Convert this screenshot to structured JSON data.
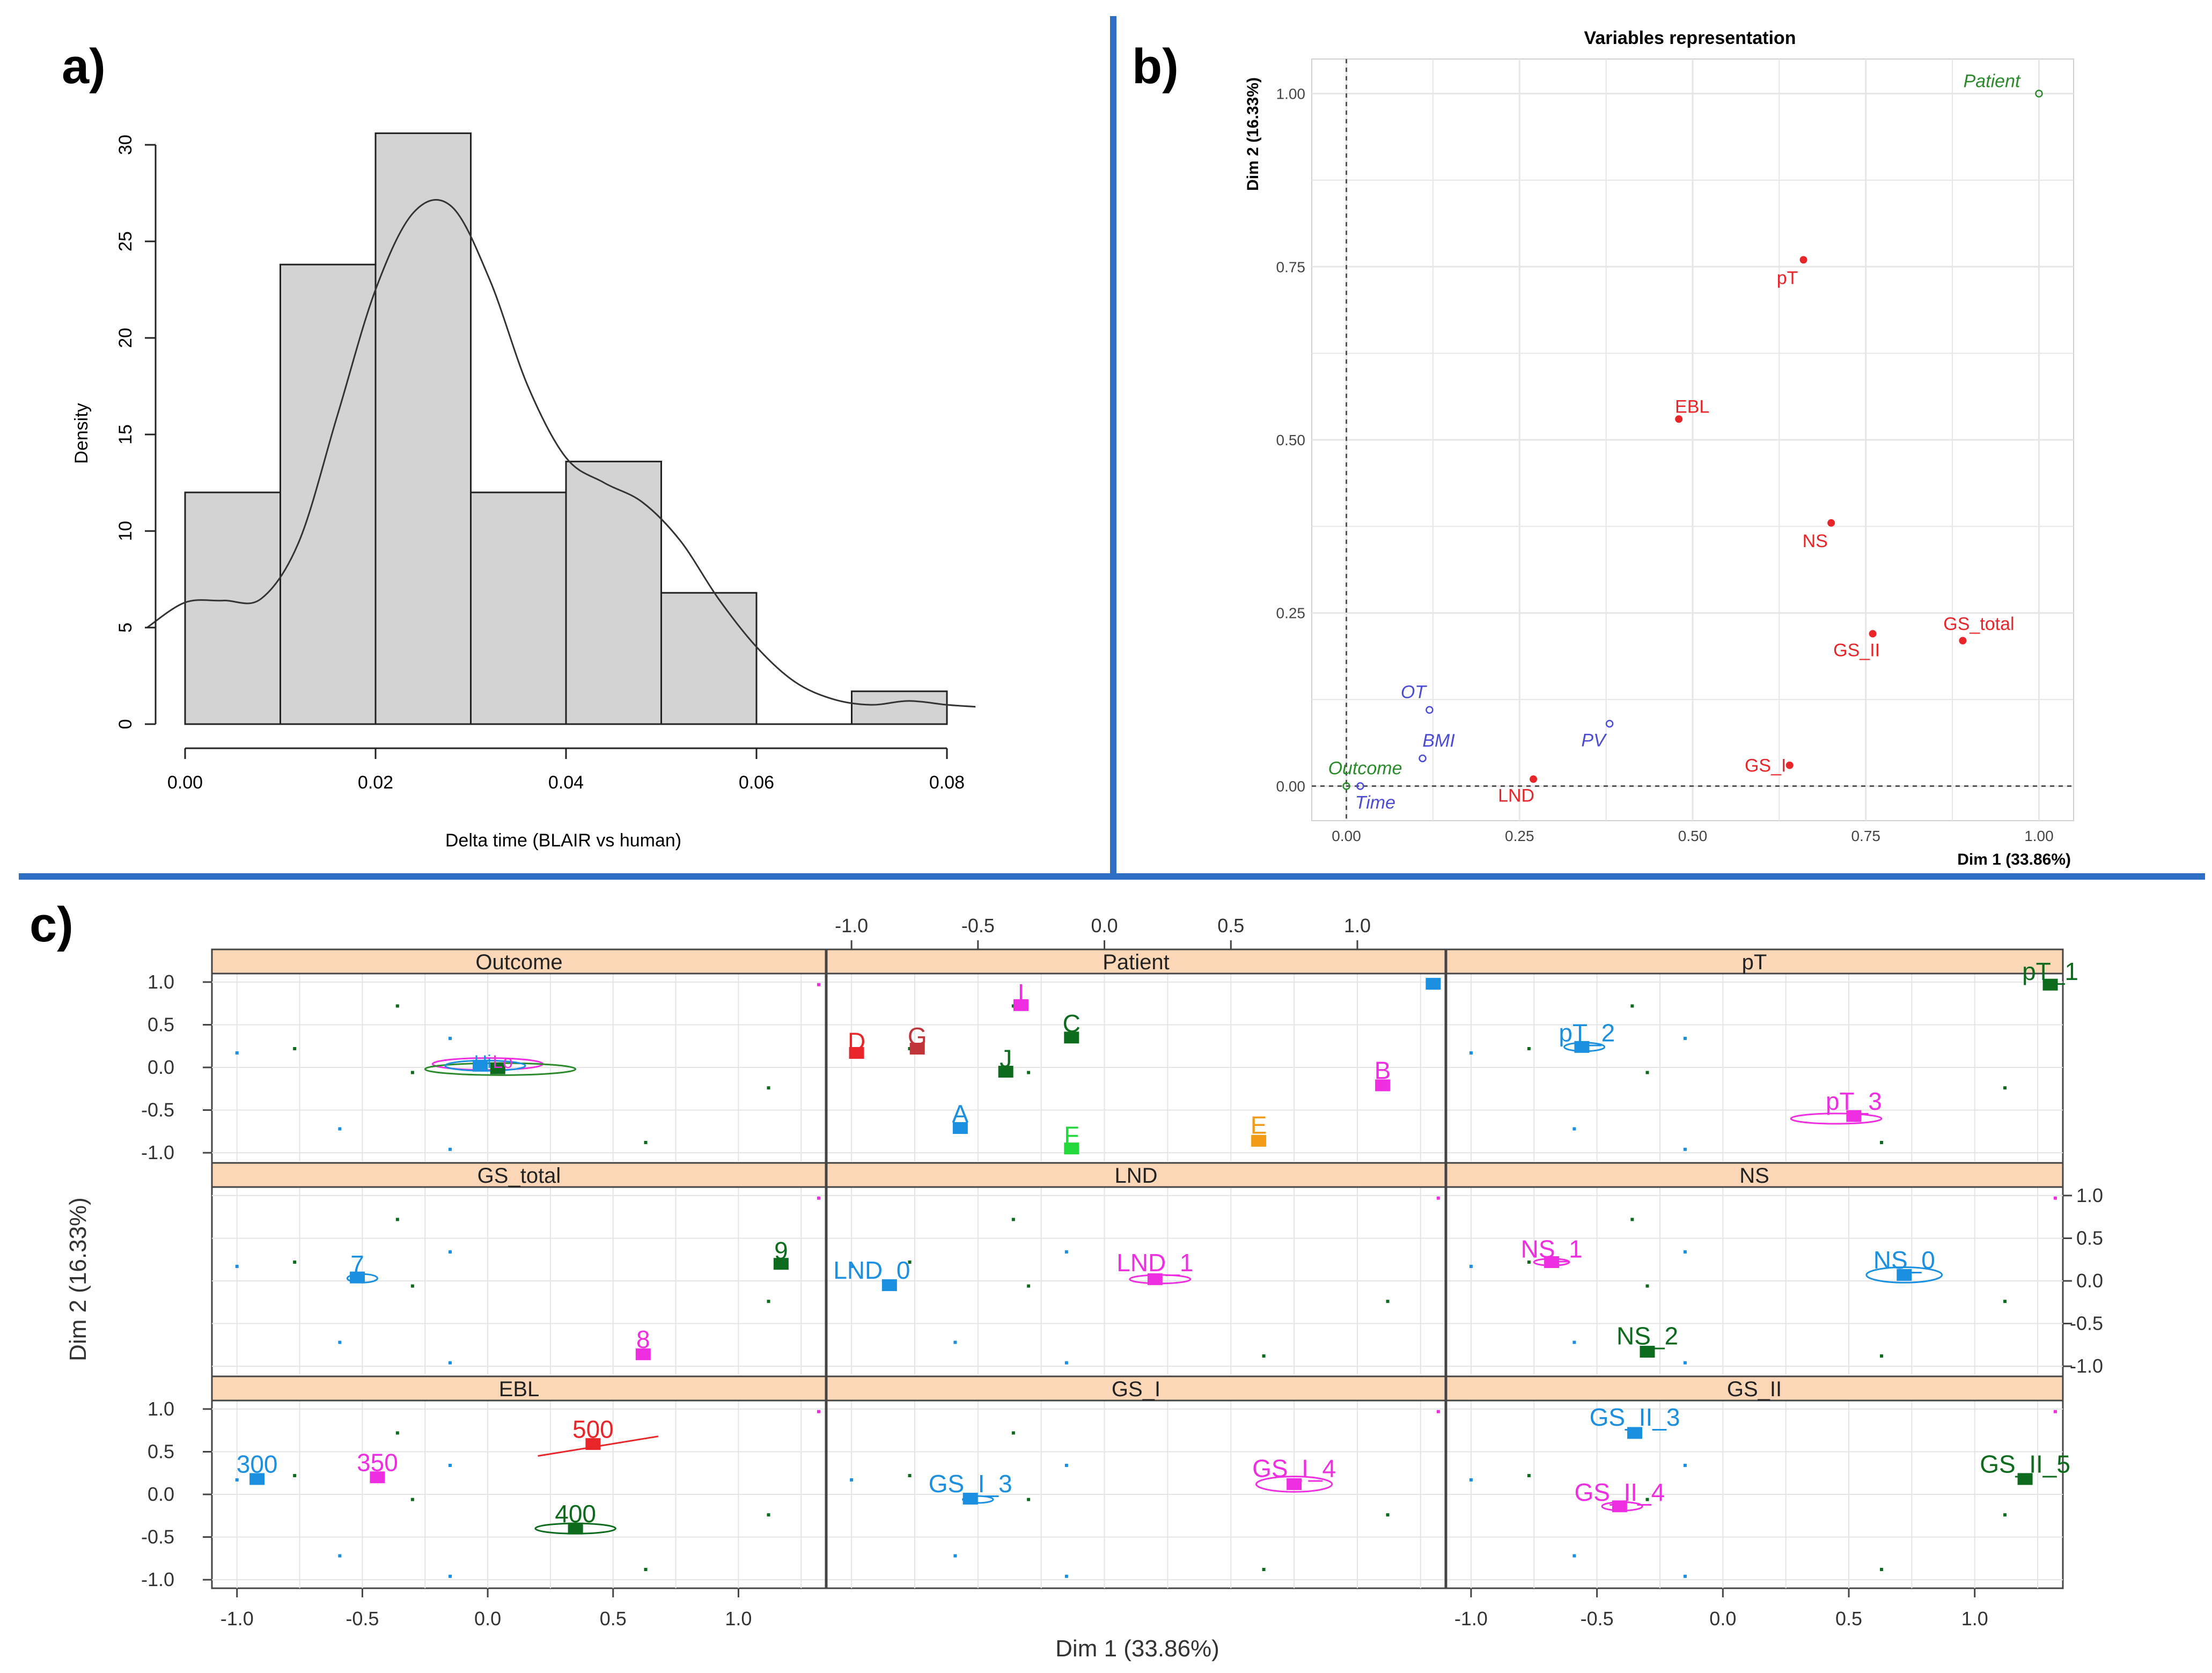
{
  "panel_labels": {
    "a": "a)",
    "b": "b)",
    "c": "c)"
  },
  "colors": {
    "divider": "#2e6fc4",
    "bar_fill": "#d3d3d3",
    "strip": "#fbd7b8",
    "red": "#e8262a",
    "blue": "#4b4bd6",
    "green": "#2b8a2b",
    "cyan": "#1b8fe0",
    "magenta": "#ee2ee0",
    "darkgreen": "#0c6b1c",
    "orange": "#f39b16",
    "brightgreen": "#22d83a",
    "brown": "#c0353a"
  },
  "chart_data": [
    {
      "type": "bar",
      "subtype": "histogram-with-density",
      "title": "",
      "xlabel": "Delta time (BLAIR vs human)",
      "ylabel": "Density",
      "xlim": [
        0,
        0.08
      ],
      "ylim": [
        0,
        30
      ],
      "xticks": [
        "0.00",
        "0.02",
        "0.04",
        "0.06",
        "0.08"
      ],
      "yticks": [
        "0",
        "5",
        "10",
        "15",
        "20",
        "25",
        "30"
      ],
      "bins": [
        {
          "from": 0.0,
          "to": 0.01,
          "value": 12
        },
        {
          "from": 0.01,
          "to": 0.02,
          "value": 23.8
        },
        {
          "from": 0.02,
          "to": 0.03,
          "value": 30.6
        },
        {
          "from": 0.03,
          "to": 0.04,
          "value": 12
        },
        {
          "from": 0.04,
          "to": 0.05,
          "value": 13.6
        },
        {
          "from": 0.05,
          "to": 0.06,
          "value": 6.8
        },
        {
          "from": 0.06,
          "to": 0.07,
          "value": 0
        },
        {
          "from": 0.07,
          "to": 0.08,
          "value": 1.7
        }
      ],
      "density": {
        "x": [
          -0.004,
          0.0,
          0.004,
          0.008,
          0.012,
          0.016,
          0.02,
          0.024,
          0.028,
          0.032,
          0.036,
          0.04,
          0.044,
          0.048,
          0.052,
          0.056,
          0.06,
          0.064,
          0.068,
          0.072,
          0.076,
          0.08,
          0.083
        ],
        "y": [
          5.0,
          6.3,
          6.4,
          6.5,
          9.5,
          16.0,
          22.5,
          26.5,
          26.8,
          23.0,
          17.5,
          13.8,
          12.5,
          11.5,
          9.5,
          6.5,
          4.0,
          2.2,
          1.3,
          1.0,
          1.2,
          1.0,
          0.9
        ]
      }
    },
    {
      "type": "scatter",
      "title": "Variables representation",
      "xlabel": "Dim 1 (33.86%)",
      "ylabel": "Dim 2 (16.33%)",
      "xlim": [
        -0.05,
        1.05
      ],
      "ylim": [
        -0.05,
        1.05
      ],
      "xticks": [
        "0.00",
        "0.25",
        "0.50",
        "0.75",
        "1.00"
      ],
      "yticks": [
        "0.00",
        "0.25",
        "0.50",
        "0.75",
        "1.00"
      ],
      "grid": true,
      "points": [
        {
          "label": "Patient",
          "x": 1.0,
          "y": 1.0,
          "group": "supplementary",
          "italic": true
        },
        {
          "label": "pT",
          "x": 0.66,
          "y": 0.76,
          "group": "active"
        },
        {
          "label": "EBL",
          "x": 0.48,
          "y": 0.53,
          "group": "active"
        },
        {
          "label": "NS",
          "x": 0.7,
          "y": 0.38,
          "group": "active"
        },
        {
          "label": "GS_total",
          "x": 0.89,
          "y": 0.21,
          "group": "active"
        },
        {
          "label": "GS_II",
          "x": 0.76,
          "y": 0.22,
          "group": "active"
        },
        {
          "label": "GS_I",
          "x": 0.64,
          "y": 0.03,
          "group": "active"
        },
        {
          "label": "LND",
          "x": 0.27,
          "y": 0.01,
          "group": "active"
        },
        {
          "label": "PV",
          "x": 0.38,
          "y": 0.09,
          "group": "quantitative",
          "italic": true
        },
        {
          "label": "OT",
          "x": 0.12,
          "y": 0.11,
          "group": "quantitative",
          "italic": true
        },
        {
          "label": "BMI",
          "x": 0.11,
          "y": 0.04,
          "group": "quantitative",
          "italic": true
        },
        {
          "label": "Outcome",
          "x": 0.0,
          "y": 0.0,
          "group": "supplementary",
          "italic": true
        },
        {
          "label": "Time",
          "x": 0.02,
          "y": 0.0,
          "group": "quantitative",
          "italic": true
        }
      ]
    },
    {
      "type": "scatter",
      "subtype": "lattice-panels",
      "xlabel": "Dim 1 (33.86%)",
      "ylabel": "Dim 2 (16.33%)",
      "xlim": [
        -1.1,
        1.35
      ],
      "ylim": [
        -1.1,
        1.1
      ],
      "xticks": [
        "-1.0",
        "-0.5",
        "0.0",
        "0.5",
        "1.0"
      ],
      "yticks": [
        "1.0",
        "0.5",
        "0.0",
        "-0.5",
        "-1.0"
      ],
      "background_points": [
        {
          "x": -1.0,
          "y": 0.17,
          "color": "cyan"
        },
        {
          "x": -0.77,
          "y": 0.22,
          "color": "darkgreen"
        },
        {
          "x": -0.59,
          "y": -0.72,
          "color": "cyan"
        },
        {
          "x": -0.36,
          "y": 0.72,
          "color": "darkgreen"
        },
        {
          "x": -0.3,
          "y": -0.06,
          "color": "darkgreen"
        },
        {
          "x": -0.15,
          "y": 0.34,
          "color": "cyan"
        },
        {
          "x": -0.15,
          "y": -0.96,
          "color": "cyan"
        },
        {
          "x": 0.63,
          "y": -0.88,
          "color": "darkgreen"
        },
        {
          "x": 1.12,
          "y": -0.24,
          "color": "darkgreen"
        },
        {
          "x": 1.32,
          "y": 0.97,
          "color": "magenta"
        }
      ],
      "panels": [
        {
          "strip": "Outcome",
          "row": 0,
          "col": 0,
          "labels": [
            {
              "text": "Hi",
              "x": -0.02,
              "y": 0.07,
              "color": "cyan",
              "size": "s"
            },
            {
              "text": "Lo",
              "x": 0.06,
              "y": 0.07,
              "color": "magenta",
              "size": "s"
            }
          ],
          "squares": [
            {
              "x": -0.03,
              "y": 0.02,
              "color": "cyan"
            },
            {
              "x": 0.04,
              "y": -0.01,
              "color": "darkgreen"
            }
          ],
          "ellipses": [
            {
              "x": 0.0,
              "y": 0.04,
              "rx": 0.22,
              "ry": 0.07,
              "color": "magenta"
            },
            {
              "x": 0.05,
              "y": -0.02,
              "rx": 0.3,
              "ry": 0.07,
              "color": "green"
            },
            {
              "x": -0.01,
              "y": 0.02,
              "rx": 0.16,
              "ry": 0.06,
              "color": "cyan"
            }
          ]
        },
        {
          "strip": "Patient",
          "row": 0,
          "col": 1,
          "labels": [
            {
              "text": "D",
              "x": -0.98,
              "y": 0.28,
              "color": "red"
            },
            {
              "text": "G",
              "x": -0.74,
              "y": 0.34,
              "color": "brown"
            },
            {
              "text": "I",
              "x": -0.33,
              "y": 0.85,
              "color": "magenta"
            },
            {
              "text": "C",
              "x": -0.13,
              "y": 0.49,
              "color": "darkgreen"
            },
            {
              "text": "J",
              "x": -0.39,
              "y": 0.08,
              "color": "darkgreen"
            },
            {
              "text": "B",
              "x": 1.1,
              "y": -0.06,
              "color": "magenta"
            },
            {
              "text": "A",
              "x": -0.57,
              "y": -0.57,
              "color": "cyan"
            },
            {
              "text": "F",
              "x": -0.13,
              "y": -0.82,
              "color": "brightgreen"
            },
            {
              "text": "E",
              "x": 0.61,
              "y": -0.7,
              "color": "orange"
            }
          ],
          "squares": [
            {
              "x": -0.98,
              "y": 0.17,
              "color": "red"
            },
            {
              "x": -0.74,
              "y": 0.22,
              "color": "brown"
            },
            {
              "x": -0.33,
              "y": 0.73,
              "color": "magenta"
            },
            {
              "x": -0.13,
              "y": 0.35,
              "color": "darkgreen"
            },
            {
              "x": -0.39,
              "y": -0.05,
              "color": "darkgreen"
            },
            {
              "x": 1.1,
              "y": -0.21,
              "color": "magenta"
            },
            {
              "x": -0.57,
              "y": -0.71,
              "color": "cyan"
            },
            {
              "x": -0.13,
              "y": -0.95,
              "color": "brightgreen"
            },
            {
              "x": 0.61,
              "y": -0.86,
              "color": "orange"
            },
            {
              "x": 1.3,
              "y": 0.98,
              "color": "cyan"
            }
          ]
        },
        {
          "strip": "pT",
          "row": 0,
          "col": 2,
          "labels": [
            {
              "text": "pT_2",
              "x": -0.54,
              "y": 0.38,
              "color": "cyan"
            },
            {
              "text": "pT_3",
              "x": 0.52,
              "y": -0.42,
              "color": "magenta"
            },
            {
              "text": "pT_1",
              "x": 1.3,
              "y": 1.1,
              "color": "darkgreen"
            }
          ],
          "squares": [
            {
              "x": -0.56,
              "y": 0.24,
              "color": "cyan"
            },
            {
              "x": 0.52,
              "y": -0.57,
              "color": "magenta"
            },
            {
              "x": 1.3,
              "y": 0.97,
              "color": "darkgreen"
            }
          ],
          "ellipses": [
            {
              "x": 0.45,
              "y": -0.6,
              "rx": 0.18,
              "ry": 0.06,
              "color": "magenta"
            },
            {
              "x": -0.55,
              "y": 0.24,
              "rx": 0.08,
              "ry": 0.05,
              "color": "cyan"
            }
          ]
        },
        {
          "strip": "GS_total",
          "row": 1,
          "col": 0,
          "labels": [
            {
              "text": "7",
              "x": -0.52,
              "y": 0.17,
              "color": "cyan"
            },
            {
              "text": "9",
              "x": 1.17,
              "y": 0.33,
              "color": "darkgreen"
            },
            {
              "text": "8",
              "x": 0.62,
              "y": -0.71,
              "color": "magenta"
            }
          ],
          "squares": [
            {
              "x": -0.52,
              "y": 0.04,
              "color": "cyan"
            },
            {
              "x": 1.17,
              "y": 0.2,
              "color": "darkgreen"
            },
            {
              "x": 0.62,
              "y": -0.86,
              "color": "magenta"
            }
          ],
          "ellipses": [
            {
              "x": -0.5,
              "y": 0.03,
              "rx": 0.06,
              "ry": 0.05,
              "color": "cyan"
            }
          ]
        },
        {
          "strip": "LND",
          "row": 1,
          "col": 1,
          "labels": [
            {
              "text": "LND_0",
              "x": -0.92,
              "y": 0.1,
              "color": "cyan"
            },
            {
              "text": "LND_1",
              "x": 0.2,
              "y": 0.19,
              "color": "magenta"
            }
          ],
          "squares": [
            {
              "x": -0.85,
              "y": -0.05,
              "color": "cyan"
            },
            {
              "x": 0.2,
              "y": 0.02,
              "color": "magenta"
            }
          ],
          "ellipses": [
            {
              "x": 0.22,
              "y": 0.02,
              "rx": 0.12,
              "ry": 0.05,
              "color": "magenta"
            }
          ]
        },
        {
          "strip": "NS",
          "row": 1,
          "col": 2,
          "labels": [
            {
              "text": "NS_1",
              "x": -0.68,
              "y": 0.35,
              "color": "magenta"
            },
            {
              "text": "NS_0",
              "x": 0.72,
              "y": 0.22,
              "color": "cyan"
            },
            {
              "text": "NS_2",
              "x": -0.3,
              "y": -0.67,
              "color": "darkgreen"
            }
          ],
          "squares": [
            {
              "x": -0.68,
              "y": 0.22,
              "color": "magenta"
            },
            {
              "x": 0.72,
              "y": 0.07,
              "color": "cyan"
            },
            {
              "x": -0.3,
              "y": -0.83,
              "color": "darkgreen"
            }
          ],
          "ellipses": [
            {
              "x": 0.72,
              "y": 0.07,
              "rx": 0.15,
              "ry": 0.09,
              "color": "cyan"
            },
            {
              "x": -0.68,
              "y": 0.22,
              "rx": 0.07,
              "ry": 0.04,
              "color": "magenta"
            }
          ]
        },
        {
          "strip": "EBL",
          "row": 2,
          "col": 0,
          "labels": [
            {
              "text": "300",
              "x": -0.92,
              "y": 0.33,
              "color": "cyan"
            },
            {
              "text": "350",
              "x": -0.44,
              "y": 0.35,
              "color": "magenta"
            },
            {
              "text": "500",
              "x": 0.42,
              "y": 0.74,
              "color": "red"
            },
            {
              "text": "400",
              "x": 0.35,
              "y": -0.25,
              "color": "darkgreen"
            }
          ],
          "squares": [
            {
              "x": -0.92,
              "y": 0.18,
              "color": "cyan"
            },
            {
              "x": -0.44,
              "y": 0.2,
              "color": "magenta"
            },
            {
              "x": 0.42,
              "y": 0.59,
              "color": "red"
            },
            {
              "x": 0.35,
              "y": -0.4,
              "color": "darkgreen"
            }
          ],
          "ellipses": [
            {
              "x": 0.35,
              "y": -0.4,
              "rx": 0.16,
              "ry": 0.06,
              "color": "darkgreen"
            }
          ]
        },
        {
          "strip": "GS_I",
          "row": 2,
          "col": 1,
          "labels": [
            {
              "text": "GS_I_3",
              "x": -0.53,
              "y": 0.1,
              "color": "cyan"
            },
            {
              "text": "GS_I_4",
              "x": 0.75,
              "y": 0.28,
              "color": "magenta"
            }
          ],
          "squares": [
            {
              "x": -0.53,
              "y": -0.05,
              "color": "cyan"
            },
            {
              "x": 0.75,
              "y": 0.12,
              "color": "magenta"
            }
          ],
          "ellipses": [
            {
              "x": 0.75,
              "y": 0.12,
              "rx": 0.15,
              "ry": 0.09,
              "color": "magenta"
            },
            {
              "x": -0.5,
              "y": -0.06,
              "rx": 0.06,
              "ry": 0.04,
              "color": "cyan"
            }
          ]
        },
        {
          "strip": "GS_II",
          "row": 2,
          "col": 2,
          "labels": [
            {
              "text": "GS_II_3",
              "x": -0.35,
              "y": 0.88,
              "color": "cyan"
            },
            {
              "text": "GS_II_4",
              "x": -0.41,
              "y": 0.0,
              "color": "magenta"
            },
            {
              "text": "GS_II_5",
              "x": 1.2,
              "y": 0.33,
              "color": "darkgreen"
            }
          ],
          "squares": [
            {
              "x": -0.35,
              "y": 0.72,
              "color": "cyan"
            },
            {
              "x": -0.41,
              "y": -0.14,
              "color": "magenta"
            },
            {
              "x": 1.2,
              "y": 0.18,
              "color": "darkgreen"
            }
          ],
          "ellipses": [
            {
              "x": -0.4,
              "y": -0.14,
              "rx": 0.08,
              "ry": 0.05,
              "color": "magenta"
            }
          ]
        }
      ]
    }
  ]
}
